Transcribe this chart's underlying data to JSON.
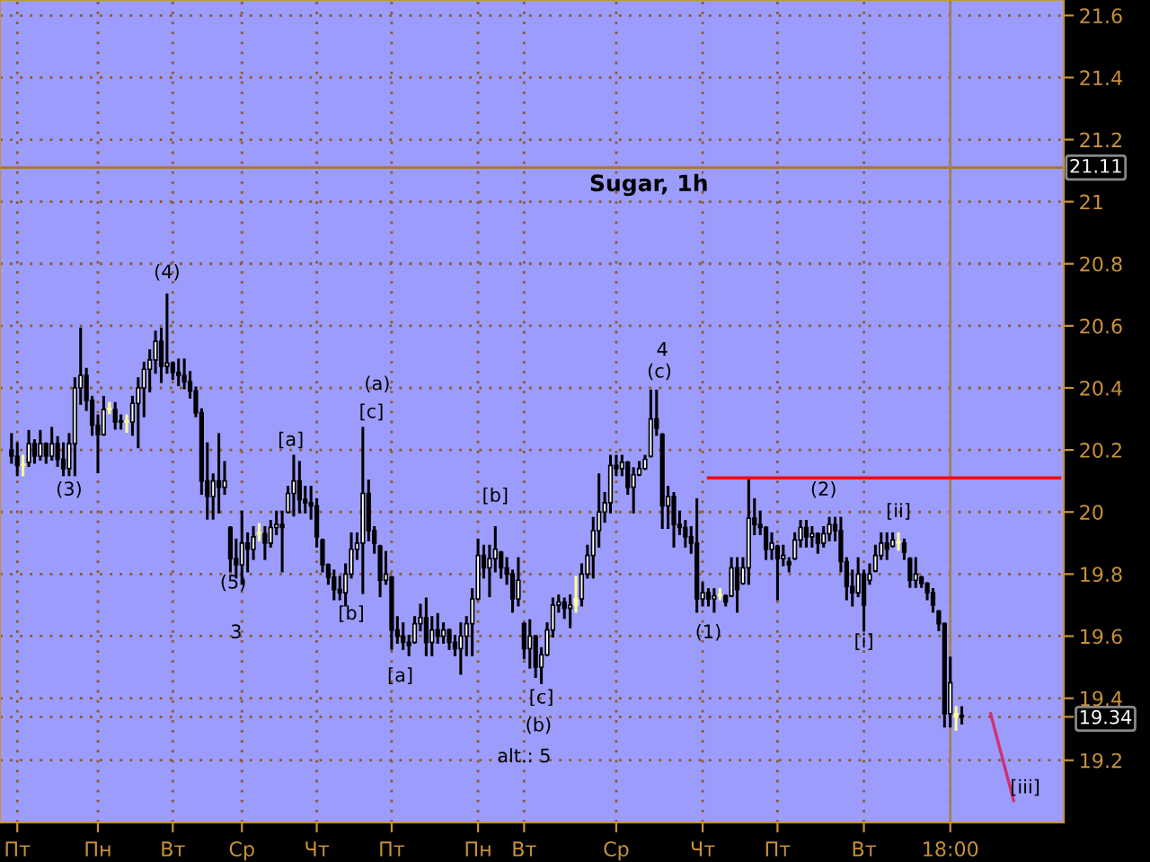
{
  "chart_data": {
    "type": "candlestick",
    "title": "Sugar, 1h",
    "categories": [
      null,
      "Пт",
      null,
      null,
      null,
      null,
      null,
      null,
      null,
      null,
      null,
      null,
      null,
      null,
      null,
      "Пн",
      null,
      null,
      null,
      null,
      null,
      null,
      null,
      null,
      null,
      null,
      null,
      null,
      "Вт",
      null,
      null,
      null,
      null,
      null,
      null,
      null,
      null,
      null,
      null,
      null,
      "Ср",
      null,
      null,
      null,
      null,
      null,
      null,
      null,
      null,
      null,
      null,
      null,
      null,
      "Чт",
      null,
      null,
      null,
      null,
      null,
      null,
      null,
      null,
      null,
      null,
      null,
      null,
      "Пт",
      null,
      null,
      null,
      null,
      null,
      null,
      null,
      null,
      null,
      null,
      null,
      null,
      null,
      null,
      "Пн",
      null,
      null,
      null,
      null,
      null,
      null,
      null,
      "Вт",
      null,
      null,
      null,
      null,
      null,
      null,
      null,
      null,
      null,
      null,
      null,
      null,
      null,
      null,
      null,
      "Ср",
      null,
      null,
      null,
      null,
      null,
      null,
      null,
      null,
      null,
      null,
      null,
      null,
      null,
      null,
      "Чт",
      null,
      null,
      null,
      null,
      null,
      null,
      null,
      null,
      null,
      null,
      null,
      null,
      "Пт",
      null,
      null,
      null,
      null,
      null,
      null,
      null,
      null,
      null,
      null,
      null,
      null,
      null,
      null,
      "Вт",
      null,
      null,
      null,
      null,
      null,
      null,
      null,
      null,
      null,
      null,
      null,
      null,
      null,
      null,
      "18:00",
      null,
      null,
      null,
      null,
      null,
      null,
      null,
      null,
      null,
      null,
      null,
      null,
      null,
      null,
      null,
      null,
      null,
      null,
      null
    ],
    "ohlc": [
      [
        20.2,
        20.25,
        20.16,
        20.18
      ],
      [
        20.18,
        20.22,
        20.12,
        20.15
      ],
      [
        20.15,
        20.18,
        20.12,
        20.15
      ],
      [
        20.16,
        20.26,
        20.15,
        20.22
      ],
      [
        20.22,
        20.23,
        20.16,
        20.18
      ],
      [
        20.18,
        20.26,
        20.17,
        20.22
      ],
      [
        20.22,
        20.22,
        20.16,
        20.18
      ],
      [
        20.18,
        20.27,
        20.17,
        20.22
      ],
      [
        20.22,
        20.24,
        20.15,
        20.17
      ],
      [
        20.17,
        20.22,
        20.12,
        20.14
      ],
      [
        20.14,
        20.25,
        20.12,
        20.22
      ],
      [
        20.22,
        20.43,
        20.12,
        20.4
      ],
      [
        20.4,
        20.59,
        20.35,
        20.44
      ],
      [
        20.44,
        20.46,
        20.33,
        20.36
      ],
      [
        20.36,
        20.37,
        20.25,
        20.28
      ],
      [
        20.28,
        20.31,
        20.13,
        20.25
      ],
      [
        20.25,
        20.37,
        20.25,
        20.33
      ],
      [
        20.33,
        20.35,
        20.32,
        20.33
      ],
      [
        20.33,
        20.35,
        20.27,
        20.29
      ],
      [
        20.29,
        20.31,
        20.27,
        20.29
      ],
      [
        20.29,
        20.31,
        20.26,
        20.29
      ],
      [
        20.29,
        20.37,
        20.25,
        20.35
      ],
      [
        20.35,
        20.43,
        20.21,
        20.4
      ],
      [
        20.4,
        20.48,
        20.31,
        20.46
      ],
      [
        20.46,
        20.52,
        20.39,
        20.49
      ],
      [
        20.49,
        20.58,
        20.45,
        20.55
      ],
      [
        20.55,
        20.59,
        20.42,
        20.47
      ],
      [
        20.47,
        20.7,
        20.45,
        20.48
      ],
      [
        20.48,
        20.48,
        20.43,
        20.45
      ],
      [
        20.45,
        20.49,
        20.41,
        20.44
      ],
      [
        20.44,
        20.49,
        20.4,
        20.42
      ],
      [
        20.42,
        20.45,
        20.37,
        20.39
      ],
      [
        20.39,
        20.4,
        20.31,
        20.32
      ],
      [
        20.32,
        20.33,
        20.06,
        20.1
      ],
      [
        20.1,
        20.22,
        19.98,
        20.05
      ],
      [
        20.05,
        20.12,
        19.98,
        20.1
      ],
      [
        20.1,
        20.25,
        20.0,
        20.08
      ],
      [
        20.08,
        20.16,
        20.06,
        20.1
      ],
      [
        19.95,
        19.95,
        19.81,
        19.85
      ],
      [
        19.85,
        19.91,
        19.79,
        19.83
      ],
      [
        19.83,
        20.0,
        19.77,
        19.9
      ],
      [
        19.9,
        19.93,
        19.81,
        19.88
      ],
      [
        19.88,
        19.95,
        19.85,
        19.92
      ],
      [
        19.93,
        19.96,
        19.91,
        19.93
      ],
      [
        19.93,
        19.95,
        19.85,
        19.9
      ],
      [
        19.9,
        19.97,
        19.89,
        19.95
      ],
      [
        19.95,
        20.0,
        19.93,
        19.96
      ],
      [
        19.96,
        20.0,
        19.81,
        19.95
      ],
      [
        20.0,
        20.08,
        20.0,
        20.06
      ],
      [
        20.06,
        20.18,
        19.99,
        20.1
      ],
      [
        20.1,
        20.16,
        20.0,
        20.04
      ],
      [
        20.04,
        20.08,
        20.0,
        20.03
      ],
      [
        20.03,
        20.08,
        19.98,
        20.02
      ],
      [
        20.02,
        20.04,
        19.89,
        19.92
      ],
      [
        19.91,
        19.91,
        19.81,
        19.83
      ],
      [
        19.83,
        19.83,
        19.77,
        19.79
      ],
      [
        19.79,
        19.81,
        19.72,
        19.75
      ],
      [
        19.75,
        19.79,
        19.72,
        19.74
      ],
      [
        19.74,
        19.83,
        19.7,
        19.8
      ],
      [
        19.8,
        19.93,
        19.79,
        19.88
      ],
      [
        19.88,
        19.93,
        19.85,
        19.9
      ],
      [
        19.9,
        20.27,
        19.74,
        20.06
      ],
      [
        20.06,
        20.1,
        19.91,
        19.94
      ],
      [
        19.94,
        19.95,
        19.87,
        19.9
      ],
      [
        19.89,
        19.89,
        19.73,
        19.78
      ],
      [
        19.78,
        19.87,
        19.77,
        19.8
      ],
      [
        19.79,
        19.79,
        19.56,
        19.62
      ],
      [
        19.62,
        19.66,
        19.58,
        19.6
      ],
      [
        19.6,
        19.64,
        19.56,
        19.58
      ],
      [
        19.58,
        19.6,
        19.54,
        19.57
      ],
      [
        19.58,
        19.66,
        19.58,
        19.64
      ],
      [
        19.64,
        19.7,
        19.62,
        19.66
      ],
      [
        19.66,
        19.72,
        19.54,
        19.58
      ],
      [
        19.58,
        19.66,
        19.54,
        19.62
      ],
      [
        19.62,
        19.67,
        19.58,
        19.6
      ],
      [
        19.6,
        19.64,
        19.58,
        19.62
      ],
      [
        19.62,
        19.62,
        19.56,
        19.58
      ],
      [
        19.58,
        19.6,
        19.54,
        19.56
      ],
      [
        19.56,
        19.64,
        19.48,
        19.6
      ],
      [
        19.6,
        19.66,
        19.54,
        19.64
      ],
      [
        19.64,
        19.75,
        19.54,
        19.72
      ],
      [
        19.72,
        19.91,
        19.72,
        19.86
      ],
      [
        19.86,
        19.89,
        19.79,
        19.82
      ],
      [
        19.82,
        19.89,
        19.73,
        19.85
      ],
      [
        19.85,
        19.95,
        19.81,
        19.88
      ],
      [
        19.87,
        19.87,
        19.79,
        19.82
      ],
      [
        19.82,
        19.85,
        19.77,
        19.8
      ],
      [
        19.8,
        19.81,
        19.68,
        19.72
      ],
      [
        19.72,
        19.85,
        19.7,
        19.78
      ],
      [
        19.64,
        19.64,
        19.53,
        19.56
      ],
      [
        19.56,
        19.65,
        19.5,
        19.6
      ],
      [
        19.6,
        19.6,
        19.47,
        19.5
      ],
      [
        19.5,
        19.56,
        19.45,
        19.54
      ],
      [
        19.54,
        19.64,
        19.54,
        19.62
      ],
      [
        19.62,
        19.72,
        19.6,
        19.7
      ],
      [
        19.7,
        19.73,
        19.68,
        19.71
      ],
      [
        19.71,
        19.72,
        19.66,
        19.69
      ],
      [
        19.69,
        19.73,
        19.63,
        19.7
      ],
      [
        19.7,
        19.79,
        19.68,
        19.72
      ],
      [
        19.72,
        19.83,
        19.7,
        19.8
      ],
      [
        19.8,
        19.89,
        19.79,
        19.86
      ],
      [
        19.86,
        19.98,
        19.79,
        19.94
      ],
      [
        19.94,
        20.12,
        19.89,
        20.0
      ],
      [
        20.0,
        20.06,
        19.97,
        20.03
      ],
      [
        20.03,
        20.18,
        20.0,
        20.15
      ],
      [
        20.15,
        20.18,
        20.12,
        20.14
      ],
      [
        20.14,
        20.18,
        20.12,
        20.16
      ],
      [
        20.16,
        20.16,
        20.06,
        20.08
      ],
      [
        20.08,
        20.14,
        20.0,
        20.12
      ],
      [
        20.12,
        20.16,
        20.12,
        20.14
      ],
      [
        20.14,
        20.18,
        20.14,
        20.17
      ],
      [
        20.18,
        20.39,
        20.18,
        20.3
      ],
      [
        20.3,
        20.39,
        20.25,
        20.27
      ],
      [
        20.25,
        20.25,
        19.95,
        20.02
      ],
      [
        20.02,
        20.08,
        19.95,
        20.05
      ],
      [
        20.05,
        20.06,
        19.89,
        19.96
      ],
      [
        19.96,
        20.0,
        19.93,
        19.95
      ],
      [
        19.95,
        19.97,
        19.89,
        19.92
      ],
      [
        19.92,
        19.95,
        19.87,
        19.9
      ],
      [
        19.9,
        20.04,
        19.68,
        19.72
      ],
      [
        19.72,
        19.77,
        19.7,
        19.74
      ],
      [
        19.74,
        19.75,
        19.7,
        19.72
      ],
      [
        19.72,
        19.75,
        19.68,
        19.73
      ],
      [
        19.73,
        19.75,
        19.72,
        19.73
      ],
      [
        19.73,
        19.73,
        19.7,
        19.71
      ],
      [
        19.73,
        19.85,
        19.73,
        19.82
      ],
      [
        19.82,
        19.85,
        19.68,
        19.75
      ],
      [
        19.77,
        19.85,
        19.77,
        19.82
      ],
      [
        19.82,
        20.1,
        19.77,
        19.98
      ],
      [
        19.98,
        20.04,
        19.93,
        19.96
      ],
      [
        19.96,
        20.0,
        19.93,
        19.95
      ],
      [
        19.95,
        19.95,
        19.85,
        19.88
      ],
      [
        19.88,
        19.93,
        19.85,
        19.9
      ],
      [
        19.89,
        19.89,
        19.72,
        19.85
      ],
      [
        19.85,
        19.89,
        19.83,
        19.86
      ],
      [
        19.84,
        19.85,
        19.81,
        19.83
      ],
      [
        19.85,
        19.93,
        19.85,
        19.91
      ],
      [
        19.91,
        19.97,
        19.89,
        19.95
      ],
      [
        19.95,
        19.97,
        19.89,
        19.92
      ],
      [
        19.92,
        19.95,
        19.89,
        19.93
      ],
      [
        19.93,
        19.93,
        19.87,
        19.9
      ],
      [
        19.9,
        19.95,
        19.89,
        19.93
      ],
      [
        19.93,
        19.98,
        19.91,
        19.96
      ],
      [
        19.96,
        19.98,
        19.91,
        19.94
      ],
      [
        19.94,
        19.98,
        19.81,
        19.84
      ],
      [
        19.84,
        19.85,
        19.72,
        19.76
      ],
      [
        19.76,
        19.81,
        19.7,
        19.74
      ],
      [
        19.74,
        19.85,
        19.73,
        19.8
      ],
      [
        19.8,
        19.81,
        19.62,
        19.7
      ],
      [
        19.78,
        19.83,
        19.77,
        19.8
      ],
      [
        19.81,
        19.89,
        19.81,
        19.86
      ],
      [
        19.86,
        19.93,
        19.85,
        19.9
      ],
      [
        19.9,
        19.93,
        19.85,
        19.88
      ],
      [
        19.89,
        19.93,
        19.89,
        19.91
      ],
      [
        19.9,
        19.93,
        19.88,
        19.9
      ],
      [
        19.9,
        19.91,
        19.85,
        19.87
      ],
      [
        19.85,
        19.85,
        19.76,
        19.78
      ],
      [
        19.78,
        19.85,
        19.76,
        19.8
      ],
      [
        19.79,
        19.79,
        19.76,
        19.77
      ],
      [
        19.77,
        19.77,
        19.72,
        19.74
      ],
      [
        19.74,
        19.75,
        19.68,
        19.7
      ],
      [
        19.68,
        19.68,
        19.62,
        19.64
      ],
      [
        19.64,
        19.64,
        19.31,
        19.35
      ],
      [
        19.35,
        19.53,
        19.31,
        19.45
      ],
      [
        19.35,
        19.37,
        19.3,
        19.34
      ],
      [
        19.34,
        19.37,
        19.32,
        19.34
      ],
      null,
      null,
      null,
      null,
      null,
      null,
      null,
      null,
      null,
      null,
      null,
      null,
      null,
      null,
      null,
      null,
      null
    ],
    "colors": [
      "#000000",
      "#000000",
      "#ffff99",
      "#000000",
      "#000000",
      "#000000",
      "#000000",
      "#000000",
      "#000000",
      "#000000",
      "#000000",
      "#000000",
      "#000000",
      "#000000",
      "#000000",
      "#000000",
      "#000000",
      "#ffff99",
      "#000000",
      "#000000",
      "#ffff99",
      "#000000",
      "#000000",
      "#000000",
      "#000000",
      "#000000",
      "#000000",
      "#000000",
      "#000000",
      "#000000",
      "#000000",
      "#000000",
      "#000000",
      "#000000",
      "#000000",
      "#000000",
      "#000000",
      "#000000",
      "#000000",
      "#000000",
      "#000000",
      "#000000",
      "#000000",
      "#ffff99",
      "#000000",
      "#000000",
      "#000000",
      "#000000",
      "#000000",
      "#000000",
      "#000000",
      "#000000",
      "#000000",
      "#000000",
      "#000000",
      "#000000",
      "#000000",
      "#000000",
      "#000000",
      "#000000",
      "#000000",
      "#000000",
      "#000000",
      "#000000",
      "#000000",
      "#000000",
      "#000000",
      "#000000",
      "#000000",
      "#000000",
      "#000000",
      "#000000",
      "#000000",
      "#000000",
      "#000000",
      "#000000",
      "#000000",
      "#000000",
      "#000000",
      "#000000",
      "#000000",
      "#000000",
      "#000000",
      "#000000",
      "#000000",
      "#000000",
      "#000000",
      "#000000",
      "#000000",
      "#000000",
      "#000000",
      "#000000",
      "#000000",
      "#000000",
      "#000000",
      "#000000",
      "#000000",
      "#000000",
      "#ffff99",
      "#000000",
      "#000000",
      "#000000",
      "#000000",
      "#000000",
      "#000000",
      "#000000",
      "#000000",
      "#000000",
      "#000000",
      "#000000",
      "#000000",
      "#000000",
      "#000000",
      "#000000",
      "#000000",
      "#000000",
      "#000000",
      "#000000",
      "#000000",
      "#000000",
      "#000000",
      "#000000",
      "#000000",
      "#ffff99",
      "#000000",
      "#000000",
      "#000000",
      "#000000",
      "#000000",
      "#000000",
      "#000000",
      "#000000",
      "#000000",
      "#000000",
      "#000000",
      "#000000",
      "#000000",
      "#000000",
      "#000000",
      "#000000",
      "#000000",
      "#000000",
      "#000000",
      "#000000",
      "#000000",
      "#000000",
      "#000000",
      "#000000",
      "#000000",
      "#000000",
      "#000000",
      "#000000",
      "#000000",
      "#000000",
      "#ffff99",
      "#000000",
      "#000000",
      "#000000",
      "#000000",
      "#000000",
      "#000000",
      "#000000",
      "#000000",
      "#000000",
      "#ffff99",
      "#000000",
      null,
      null,
      null,
      null,
      null,
      null,
      null,
      null,
      null,
      null,
      null,
      null,
      null,
      null,
      null,
      null,
      null
    ],
    "series": [
      {
        "type": "line",
        "color": "#ff0000",
        "values": [
          null,
          null,
          null,
          null,
          null,
          null,
          null,
          null,
          null,
          null,
          null,
          null,
          null,
          null,
          null,
          null,
          null,
          null,
          null,
          null,
          null,
          null,
          null,
          null,
          null,
          null,
          null,
          null,
          null,
          null,
          null,
          null,
          null,
          null,
          null,
          null,
          null,
          null,
          null,
          null,
          null,
          null,
          null,
          null,
          null,
          null,
          null,
          null,
          null,
          null,
          null,
          null,
          null,
          null,
          null,
          null,
          null,
          null,
          null,
          null,
          null,
          null,
          null,
          null,
          null,
          null,
          null,
          null,
          null,
          null,
          null,
          null,
          null,
          null,
          null,
          null,
          null,
          null,
          null,
          null,
          null,
          null,
          null,
          null,
          null,
          null,
          null,
          null,
          null,
          null,
          null,
          null,
          null,
          null,
          null,
          null,
          null,
          null,
          null,
          null,
          null,
          null,
          null,
          null,
          null,
          null,
          null,
          null,
          null,
          null,
          null,
          null,
          null,
          null,
          null,
          null,
          null,
          null,
          null,
          null,
          null,
          20.11,
          20.11,
          20.11,
          20.11,
          20.11,
          20.11,
          20.11,
          20.11,
          20.11,
          20.11,
          20.11,
          20.11,
          20.11,
          20.11,
          20.11,
          20.11,
          20.11,
          20.11,
          20.11,
          20.11,
          20.11,
          20.11,
          20.11,
          20.11,
          20.11,
          20.11,
          20.11,
          20.11,
          20.11,
          20.11,
          20.11,
          20.11,
          20.11,
          20.11,
          20.11,
          20.11,
          20.11,
          20.11,
          20.11,
          20.11,
          20.11,
          20.11,
          20.11,
          20.11,
          20.11,
          20.11,
          20.11,
          20.11,
          20.11,
          20.11,
          20.11,
          20.11,
          20.11,
          20.11,
          20.11,
          20.11,
          20.11,
          20.11,
          20.11,
          20.11,
          20.11,
          20.11
        ]
      },
      {
        "type": "line",
        "color": "#d03070",
        "values": [
          null,
          null,
          null,
          null,
          null,
          null,
          null,
          null,
          null,
          null,
          null,
          null,
          null,
          null,
          null,
          null,
          null,
          null,
          null,
          null,
          null,
          null,
          null,
          null,
          null,
          null,
          null,
          null,
          null,
          null,
          null,
          null,
          null,
          null,
          null,
          null,
          null,
          null,
          null,
          null,
          null,
          null,
          null,
          null,
          null,
          null,
          null,
          null,
          null,
          null,
          null,
          null,
          null,
          null,
          null,
          null,
          null,
          null,
          null,
          null,
          null,
          null,
          null,
          null,
          null,
          null,
          null,
          null,
          null,
          null,
          null,
          null,
          null,
          null,
          null,
          null,
          null,
          null,
          null,
          null,
          null,
          null,
          null,
          null,
          null,
          null,
          null,
          null,
          null,
          null,
          null,
          null,
          null,
          null,
          null,
          null,
          null,
          null,
          null,
          null,
          null,
          null,
          null,
          null,
          null,
          null,
          null,
          null,
          null,
          null,
          null,
          null,
          null,
          null,
          null,
          null,
          null,
          null,
          null,
          null,
          null,
          null,
          null,
          null,
          null,
          null,
          null,
          null,
          null,
          null,
          null,
          null,
          null,
          null,
          null,
          null,
          null,
          null,
          null,
          null,
          null,
          null,
          null,
          null,
          null,
          null,
          null,
          null,
          null,
          null,
          null,
          null,
          null,
          null,
          null,
          null,
          null,
          null,
          null,
          null,
          null,
          null,
          null,
          null,
          null,
          null,
          null,
          null,
          null,
          null,
          19.35,
          19.28,
          19.21,
          19.14,
          19.07,
          null,
          null,
          null,
          null,
          null,
          null,
          null,
          null
        ]
      }
    ],
    "ylim": [
      19.0,
      21.65
    ],
    "yticks": [
      19.2,
      {
        "value": 19.34,
        "label": "19.34"
      },
      19.4,
      19.6,
      19.8,
      20,
      20.2,
      20.4,
      20.6,
      20.8,
      21,
      21.2,
      21.4,
      21.6
    ],
    "grid": true,
    "ref_lines": [
      {
        "axis": "y",
        "value": 21.11,
        "label": "21.11",
        "color": "#b07030"
      },
      {
        "axis": "x",
        "value": "18:00",
        "label": null,
        "color": "#a08060"
      }
    ],
    "annotations": [
      "(3)",
      "(4)",
      "(5)",
      "3",
      "[a]",
      "[b]",
      "(a)",
      "[c]",
      "[a]",
      "[b]",
      "[c]",
      "(b)",
      "alt.: 5",
      "4",
      "(c)",
      "(1)",
      "(2)",
      "[i]",
      "[ii]",
      "[iii]"
    ]
  }
}
